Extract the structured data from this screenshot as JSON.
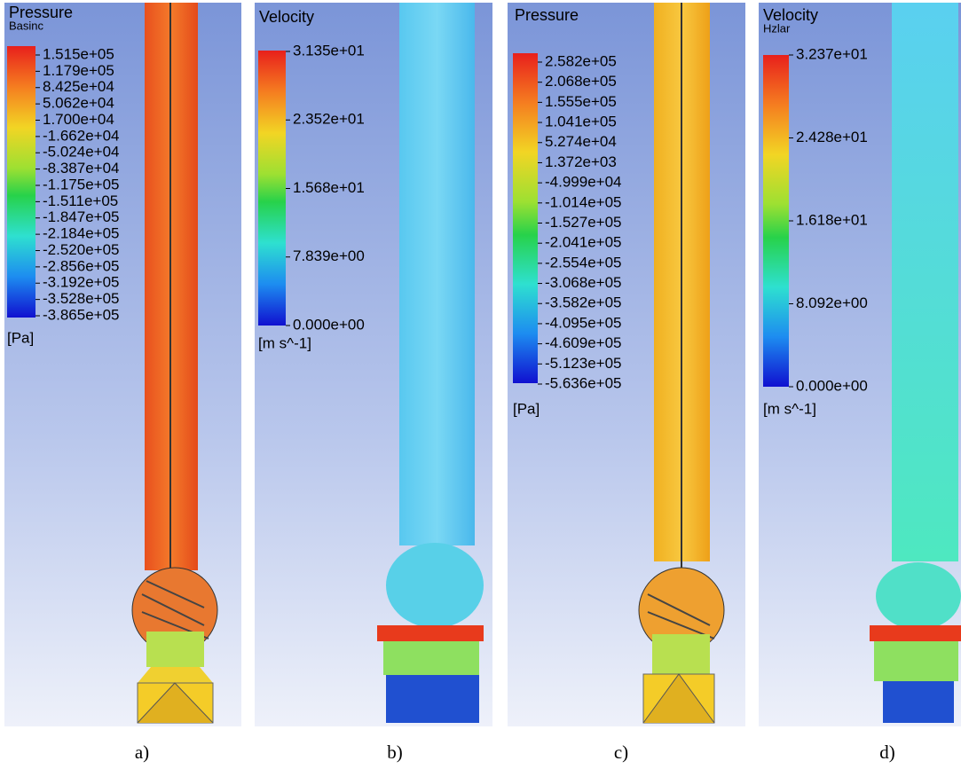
{
  "panels": [
    {
      "title": "Pressure",
      "subtitle": "Basinc",
      "legend_labels": [
        "1.515e+05",
        "1.179e+05",
        "8.425e+04",
        "5.062e+04",
        "1.700e+04",
        "-1.662e+04",
        "-5.024e+04",
        "-8.387e+04",
        "-1.175e+05",
        "-1.511e+05",
        "-1.847e+05",
        "-2.184e+05",
        "-2.520e+05",
        "-2.856e+05",
        "-3.192e+05",
        "-3.528e+05",
        "-3.865e+05"
      ],
      "unit": "[Pa]",
      "caption": "a)"
    },
    {
      "title": "Velocity",
      "legend_labels": [
        "3.135e+01",
        "2.352e+01",
        "1.568e+01",
        "7.839e+00",
        "0.000e+00"
      ],
      "unit": "[m s^-1]",
      "caption": "b)"
    },
    {
      "title": "Pressure",
      "legend_labels": [
        "2.582e+05",
        "2.068e+05",
        "1.555e+05",
        "1.041e+05",
        "5.274e+04",
        "1.372e+03",
        "-4.999e+04",
        "-1.014e+05",
        "-1.527e+05",
        "-2.041e+05",
        "-2.554e+05",
        "-3.068e+05",
        "-3.582e+05",
        "-4.095e+05",
        "-4.609e+05",
        "-5.123e+05",
        "-5.636e+05"
      ],
      "unit": "[Pa]",
      "caption": "c)"
    },
    {
      "title": "Velocity",
      "subtitle": "Hzlar",
      "legend_labels": [
        "3.237e+01",
        "2.428e+01",
        "1.618e+01",
        "8.092e+00",
        "0.000e+00"
      ],
      "unit": "[m s^-1]",
      "caption": "d)"
    }
  ]
}
